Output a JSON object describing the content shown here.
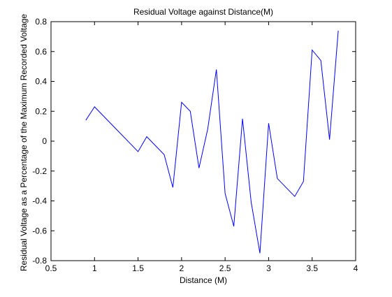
{
  "chart_data": {
    "type": "line",
    "title": "Residual Voltage against Distance(M)",
    "xlabel": "Distance (M)",
    "ylabel": "Residual Voltage as a Percentage of the Maximum Recorded Voltage",
    "xlim": [
      0.5,
      4
    ],
    "ylim": [
      -0.8,
      0.8
    ],
    "xticks": [
      0.5,
      1,
      1.5,
      2,
      2.5,
      3,
      3.5,
      4
    ],
    "xtick_labels": [
      "0.5",
      "1",
      "1.5",
      "2",
      "2.5",
      "3",
      "3.5",
      "4"
    ],
    "yticks": [
      -0.8,
      -0.6,
      -0.4,
      -0.2,
      0,
      0.2,
      0.4,
      0.6,
      0.8
    ],
    "ytick_labels": [
      "-0.8",
      "-0.6",
      "-0.4",
      "-0.2",
      "0",
      "0.2",
      "0.4",
      "0.6",
      "0.8"
    ],
    "grid": false,
    "series": [
      {
        "color": "#0000ff",
        "x": [
          0.9,
          1.0,
          1.5,
          1.6,
          1.8,
          1.9,
          2.0,
          2.1,
          2.2,
          2.3,
          2.4,
          2.5,
          2.6,
          2.7,
          2.8,
          2.9,
          3.0,
          3.1,
          3.3,
          3.4,
          3.5,
          3.6,
          3.7,
          3.8
        ],
        "y": [
          0.14,
          0.23,
          -0.07,
          0.03,
          -0.09,
          -0.31,
          0.26,
          0.2,
          -0.18,
          0.08,
          0.48,
          -0.35,
          -0.57,
          0.15,
          -0.41,
          -0.75,
          0.12,
          -0.25,
          -0.37,
          -0.27,
          0.61,
          0.54,
          0.01,
          0.74
        ]
      }
    ]
  }
}
